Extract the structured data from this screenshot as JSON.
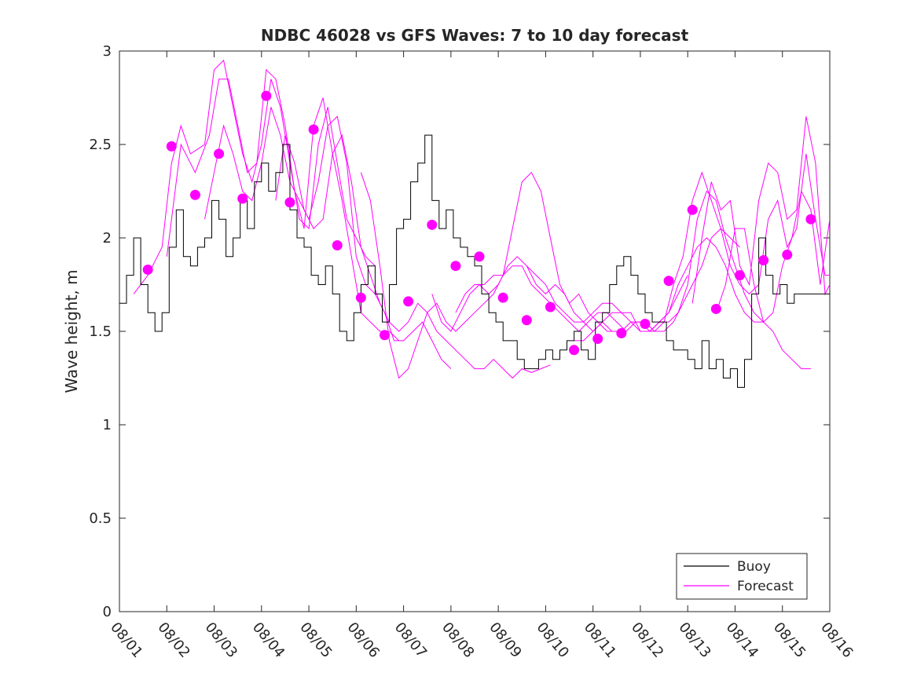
{
  "chart_data": {
    "type": "line",
    "title": "NDBC 46028 vs GFS Waves: 7 to 10 day forecast",
    "xlabel": "",
    "ylabel": "Wave height, m",
    "xlim": [
      0,
      15
    ],
    "ylim": [
      0,
      3
    ],
    "y_ticks": [
      0,
      0.5,
      1,
      1.5,
      2,
      2.5,
      3
    ],
    "y_tick_labels": [
      "0",
      "0.5",
      "1",
      "1.5",
      "2",
      "2.5",
      "3"
    ],
    "x_ticks": [
      0,
      1,
      2,
      3,
      4,
      5,
      6,
      7,
      8,
      9,
      10,
      11,
      12,
      13,
      14,
      15
    ],
    "x_tick_labels": [
      "08/01",
      "08/02",
      "08/03",
      "08/04",
      "08/05",
      "08/06",
      "08/07",
      "08/08",
      "08/09",
      "08/10",
      "08/11",
      "08/12",
      "08/13",
      "08/14",
      "08/15",
      "08/16"
    ],
    "legend": {
      "position": "bottom-right",
      "entries": [
        "Buoy",
        "Forecast"
      ]
    },
    "colors": {
      "buoy": "#000000",
      "forecast": "#ff00ff",
      "axis": "#262626"
    },
    "buoy": {
      "name": "Buoy",
      "x": [
        0,
        0.15,
        0.3,
        0.45,
        0.6,
        0.75,
        0.9,
        1.05,
        1.2,
        1.35,
        1.5,
        1.65,
        1.8,
        1.95,
        2.1,
        2.25,
        2.4,
        2.55,
        2.7,
        2.85,
        3.0,
        3.15,
        3.3,
        3.45,
        3.6,
        3.75,
        3.9,
        4.05,
        4.2,
        4.35,
        4.5,
        4.65,
        4.8,
        4.95,
        5.1,
        5.25,
        5.4,
        5.55,
        5.7,
        5.85,
        6.0,
        6.15,
        6.3,
        6.45,
        6.6,
        6.75,
        6.9,
        7.05,
        7.2,
        7.35,
        7.5,
        7.65,
        7.8,
        7.95,
        8.1,
        8.25,
        8.4,
        8.55,
        8.7,
        8.85,
        9.0,
        9.15,
        9.3,
        9.45,
        9.6,
        9.75,
        9.9,
        10.05,
        10.2,
        10.35,
        10.5,
        10.65,
        10.8,
        10.95,
        11.1,
        11.25,
        11.4,
        11.55,
        11.7,
        11.85,
        12.0,
        12.15,
        12.3,
        12.45,
        12.6,
        12.75,
        12.9,
        13.05,
        13.2,
        13.35,
        13.5,
        13.65,
        13.8,
        13.95,
        14.1,
        14.25,
        14.4,
        14.55,
        14.7,
        14.85,
        15.0
      ],
      "values": [
        1.65,
        1.8,
        2.0,
        1.75,
        1.6,
        1.5,
        1.6,
        1.95,
        2.15,
        1.9,
        1.85,
        1.95,
        2.0,
        2.2,
        2.1,
        1.9,
        2.0,
        2.2,
        2.05,
        2.3,
        2.4,
        2.25,
        2.35,
        2.5,
        2.15,
        2.0,
        1.95,
        1.8,
        1.75,
        1.85,
        1.7,
        1.5,
        1.45,
        1.6,
        1.75,
        1.85,
        1.7,
        1.55,
        1.75,
        2.05,
        2.1,
        2.3,
        2.4,
        2.55,
        2.2,
        2.05,
        2.15,
        2.0,
        1.95,
        1.9,
        1.85,
        1.7,
        1.6,
        1.55,
        1.45,
        1.45,
        1.35,
        1.3,
        1.3,
        1.35,
        1.4,
        1.35,
        1.4,
        1.45,
        1.5,
        1.4,
        1.35,
        1.55,
        1.6,
        1.75,
        1.85,
        1.9,
        1.8,
        1.7,
        1.6,
        1.55,
        1.55,
        1.45,
        1.4,
        1.4,
        1.35,
        1.3,
        1.45,
        1.3,
        1.35,
        1.25,
        1.3,
        1.2,
        1.35,
        1.7,
        2.0,
        1.8,
        1.7,
        1.75,
        1.65,
        1.7,
        1.7,
        1.7,
        1.7,
        1.7,
        1.7
      ]
    },
    "forecast": {
      "name": "Forecast",
      "series": [
        {
          "x": [
            0.3,
            0.6,
            0.9,
            1.1,
            1.3,
            1.5,
            1.8,
            2.0,
            2.2,
            2.4,
            2.6,
            2.8,
            3.0,
            3.2,
            3.4,
            3.6,
            3.8,
            4.0,
            4.2,
            4.4,
            4.6,
            4.8,
            5.0,
            5.2,
            5.4
          ],
          "values": [
            1.7,
            1.8,
            1.95,
            2.4,
            2.6,
            2.45,
            2.5,
            2.9,
            2.95,
            2.7,
            2.45,
            2.3,
            2.5,
            2.85,
            2.7,
            2.4,
            2.1,
            2.05,
            2.5,
            2.7,
            2.4,
            2.1,
            2.0,
            1.9,
            1.85
          ]
        },
        {
          "x": [
            1.0,
            1.3,
            1.6,
            1.9,
            2.1,
            2.3,
            2.5,
            2.7,
            2.9,
            3.1,
            3.3,
            3.5,
            3.7,
            3.9,
            4.1,
            4.3,
            4.5,
            4.7,
            4.9,
            5.1,
            5.3,
            5.5,
            5.7,
            5.9
          ],
          "values": [
            1.9,
            2.5,
            2.35,
            2.55,
            2.85,
            2.85,
            2.6,
            2.35,
            2.4,
            2.9,
            2.85,
            2.6,
            2.25,
            2.05,
            2.6,
            2.75,
            2.45,
            2.2,
            1.9,
            1.6,
            1.55,
            1.5,
            1.5,
            1.45
          ]
        },
        {
          "x": [
            1.8,
            2.0,
            2.2,
            2.4,
            2.6,
            2.8,
            3.0,
            3.2,
            3.4,
            3.6,
            3.8,
            4.0,
            4.2,
            4.4,
            4.6,
            4.8,
            5.0,
            5.2,
            5.4,
            5.6,
            5.8,
            6.0,
            6.2,
            6.4,
            6.6,
            6.8,
            7.0
          ],
          "values": [
            2.1,
            2.35,
            2.6,
            2.45,
            2.25,
            2.2,
            2.4,
            2.7,
            2.55,
            2.3,
            2.2,
            2.1,
            2.3,
            2.6,
            2.65,
            2.4,
            1.9,
            1.75,
            1.7,
            1.6,
            1.45,
            1.45,
            1.5,
            1.55,
            1.45,
            1.35,
            1.3
          ]
        },
        {
          "x": [
            3.3,
            3.5,
            3.7,
            3.9,
            4.1,
            4.3,
            4.5,
            4.7,
            4.9,
            5.1,
            5.3,
            5.5,
            5.7,
            5.9,
            6.1,
            6.3,
            6.5,
            6.7,
            6.9,
            7.1,
            7.3,
            7.5,
            7.7,
            7.9,
            8.1,
            8.3,
            8.5,
            8.7,
            8.9,
            9.1
          ],
          "values": [
            2.2,
            2.55,
            2.4,
            2.15,
            2.05,
            2.1,
            2.45,
            2.55,
            2.3,
            1.95,
            1.8,
            1.65,
            1.55,
            1.5,
            1.55,
            1.65,
            1.6,
            1.5,
            1.45,
            1.4,
            1.35,
            1.3,
            1.3,
            1.35,
            1.3,
            1.25,
            1.3,
            1.28,
            1.3,
            1.32
          ]
        },
        {
          "x": [
            5.1,
            5.3,
            5.5,
            5.7,
            5.9,
            6.1,
            6.3,
            6.5,
            6.7,
            6.9,
            7.1,
            7.3,
            7.5,
            7.7,
            7.9,
            8.1,
            8.3,
            8.5,
            8.7,
            8.9,
            9.1,
            9.3,
            9.5,
            9.7,
            9.9,
            10.1,
            10.3,
            10.5
          ],
          "values": [
            2.35,
            2.2,
            1.85,
            1.45,
            1.25,
            1.3,
            1.45,
            1.6,
            1.65,
            1.55,
            1.5,
            1.55,
            1.6,
            1.65,
            1.7,
            1.8,
            2.05,
            2.3,
            2.35,
            2.25,
            2.0,
            1.75,
            1.65,
            1.7,
            1.6,
            1.55,
            1.5,
            1.5
          ]
        },
        {
          "x": [
            6.6,
            6.8,
            7.0,
            7.2,
            7.4,
            7.6,
            7.8,
            8.0,
            8.2,
            8.4,
            8.6,
            8.8,
            9.0,
            9.2,
            9.4,
            9.6,
            9.8,
            10.0,
            10.2,
            10.4,
            10.6,
            10.8,
            11.0,
            11.2,
            11.4,
            11.6,
            11.8,
            12.0
          ],
          "values": [
            1.7,
            1.55,
            1.5,
            1.6,
            1.7,
            1.75,
            1.7,
            1.75,
            1.85,
            1.9,
            1.85,
            1.75,
            1.7,
            1.75,
            1.7,
            1.6,
            1.55,
            1.5,
            1.55,
            1.5,
            1.5,
            1.55,
            1.55,
            1.5,
            1.55,
            1.6,
            1.7,
            1.8
          ]
        },
        {
          "x": [
            7.1,
            7.3,
            7.5,
            7.7,
            7.9,
            8.1,
            8.3,
            8.5,
            8.7,
            8.9,
            9.1,
            9.3,
            9.5,
            9.7,
            9.9,
            10.1,
            10.3,
            10.5,
            10.7,
            10.9,
            11.1,
            11.3,
            11.5,
            11.7,
            11.9,
            12.1,
            12.3,
            12.5,
            12.7,
            12.9,
            13.1
          ],
          "values": [
            1.6,
            1.7,
            1.75,
            1.75,
            1.8,
            1.8,
            1.85,
            1.85,
            1.75,
            1.7,
            1.65,
            1.6,
            1.55,
            1.5,
            1.55,
            1.6,
            1.6,
            1.55,
            1.5,
            1.55,
            1.55,
            1.5,
            1.5,
            1.55,
            1.65,
            1.75,
            1.85,
            2.0,
            2.05,
            2.0,
            1.95
          ]
        },
        {
          "x": [
            8.6,
            8.8,
            9.0,
            9.2,
            9.4,
            9.6,
            9.8,
            10.0,
            10.2,
            10.4,
            10.6,
            10.8,
            11.0,
            11.2,
            11.4,
            11.6,
            11.8,
            12.0,
            12.2,
            12.4,
            12.6,
            12.8,
            13.0,
            13.2,
            13.4,
            13.6
          ],
          "values": [
            1.85,
            1.8,
            1.75,
            1.65,
            1.6,
            1.55,
            1.55,
            1.6,
            1.65,
            1.65,
            1.6,
            1.6,
            1.5,
            1.5,
            1.55,
            1.6,
            1.75,
            1.85,
            1.95,
            2.0,
            1.95,
            1.85,
            1.7,
            1.6,
            1.55,
            1.55
          ]
        },
        {
          "x": [
            9.6,
            9.8,
            10.0,
            10.2,
            10.4,
            10.6,
            10.8,
            11.0,
            11.2,
            11.4,
            11.6,
            11.8,
            12.0,
            12.2,
            12.4,
            12.6,
            12.8,
            13.0,
            13.2,
            13.4,
            13.6,
            13.8,
            14.0,
            14.2,
            14.4,
            14.6
          ],
          "values": [
            1.45,
            1.45,
            1.5,
            1.55,
            1.6,
            1.6,
            1.55,
            1.5,
            1.5,
            1.55,
            1.55,
            1.6,
            1.75,
            2.1,
            2.25,
            2.2,
            2.0,
            1.85,
            1.7,
            1.6,
            1.55,
            1.5,
            1.4,
            1.35,
            1.3,
            1.3
          ]
        },
        {
          "x": [
            11.1,
            11.3,
            11.5,
            11.7,
            11.9,
            12.1,
            12.3,
            12.5,
            12.7,
            12.9,
            13.1,
            13.3,
            13.5,
            13.7,
            13.9,
            14.1,
            14.3,
            14.5,
            14.7,
            14.9,
            15.0
          ],
          "values": [
            1.5,
            1.5,
            1.55,
            1.75,
            1.9,
            2.2,
            2.35,
            2.2,
            2.05,
            1.85,
            1.75,
            1.7,
            1.75,
            2.1,
            2.2,
            1.95,
            2.05,
            2.45,
            2.1,
            1.8,
            1.8
          ]
        },
        {
          "x": [
            12.1,
            12.3,
            12.5,
            12.7,
            12.9,
            13.1,
            13.3,
            13.5,
            13.7,
            13.9,
            14.1,
            14.3,
            14.5,
            14.7,
            14.9,
            15.0
          ],
          "values": [
            1.65,
            2.0,
            2.3,
            2.15,
            2.2,
            1.85,
            1.75,
            2.2,
            2.4,
            2.35,
            2.1,
            2.15,
            2.65,
            2.4,
            1.7,
            1.75
          ]
        },
        {
          "x": [
            12.6,
            12.8,
            13.0,
            13.2,
            13.4,
            13.6,
            13.8,
            14.0,
            14.2,
            14.4,
            14.6,
            14.8,
            15.0
          ],
          "values": [
            1.6,
            1.75,
            2.05,
            2.05,
            1.75,
            1.55,
            1.6,
            1.85,
            2.0,
            2.25,
            2.15,
            1.75,
            2.1
          ]
        }
      ],
      "markers": {
        "x": [
          0.6,
          1.1,
          1.6,
          2.1,
          2.6,
          3.1,
          3.6,
          4.1,
          4.6,
          5.1,
          5.6,
          6.1,
          6.6,
          7.1,
          7.6,
          8.1,
          8.6,
          9.1,
          9.6,
          10.1,
          10.6,
          11.1,
          11.6,
          12.1,
          12.6,
          13.1,
          13.6,
          14.1,
          14.6
        ],
        "values": [
          1.83,
          2.49,
          2.23,
          2.45,
          2.21,
          2.76,
          2.19,
          2.58,
          1.96,
          1.68,
          1.48,
          1.66,
          2.07,
          1.85,
          1.9,
          1.68,
          1.56,
          1.63,
          1.4,
          1.46,
          1.49,
          1.54,
          1.77,
          2.15,
          1.62,
          1.8,
          1.88,
          1.91,
          2.1
        ]
      }
    }
  }
}
